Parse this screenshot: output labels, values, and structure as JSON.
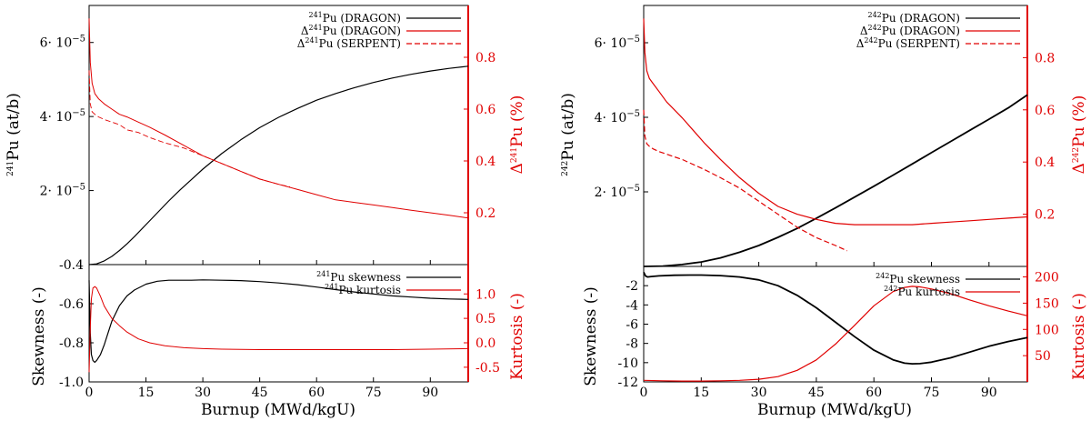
{
  "chart_data": [
    {
      "id": "pu241",
      "type": "line",
      "xlabel": "Burnup (MWd/kgU)",
      "x_ticks": [
        "0",
        "15",
        "30",
        "45",
        "60",
        "75",
        "90"
      ],
      "xlim": [
        0,
        100
      ],
      "top": {
        "ylabel_main": "Pu (at/b)",
        "ylabel_main_sup": "241",
        "ylabel_right": "Pu (%)",
        "ylabel_right_prefix": "Δ",
        "ylabel_right_sup": "241",
        "ylim_left": [
          0,
          7e-05
        ],
        "ylim_right": [
          0,
          1.0
        ],
        "left_ticks": [
          {
            "v": 2e-05,
            "label": "2· 10"
          },
          {
            "v": 4e-05,
            "label": "4· 10"
          },
          {
            "v": 6e-05,
            "label": "6· 10"
          }
        ],
        "left_tick_exp": "−5",
        "right_ticks": [
          "0.2",
          "0.4",
          "0.6",
          "0.8"
        ],
        "legend": [
          {
            "name": "Pu (DRAGON)",
            "sup": "241",
            "prefix": "",
            "color": "#000000",
            "dash": "solid"
          },
          {
            "name": "Pu (DRAGON)",
            "sup": "241",
            "prefix": "Δ",
            "color": "#e00000",
            "dash": "solid"
          },
          {
            "name": "Pu (SERPENT)",
            "sup": "241",
            "prefix": "Δ",
            "color": "#e00000",
            "dash": "dashed"
          }
        ],
        "series": [
          {
            "axis": "left",
            "color": "#000000",
            "dash": "solid",
            "width": 1.2,
            "x": [
              0,
              2,
              4,
              6,
              8,
              10,
              12,
              15,
              18,
              21,
              24,
              27,
              30,
              35,
              40,
              45,
              50,
              55,
              60,
              65,
              70,
              75,
              80,
              85,
              90,
              95,
              100
            ],
            "y": [
              0,
              2e-07,
              1e-06,
              2.2e-06,
              3.8e-06,
              5.6e-06,
              7.6e-06,
              1.08e-05,
              1.4e-05,
              1.72e-05,
              2.02e-05,
              2.3e-05,
              2.58e-05,
              3e-05,
              3.37e-05,
              3.7e-05,
              3.98e-05,
              4.22e-05,
              4.44e-05,
              4.62e-05,
              4.78e-05,
              4.92e-05,
              5.04e-05,
              5.14e-05,
              5.23e-05,
              5.3e-05,
              5.36e-05
            ]
          },
          {
            "axis": "right",
            "color": "#e00000",
            "dash": "solid",
            "width": 1.0,
            "x": [
              0,
              0.3,
              0.8,
              1.5,
              2.5,
              4,
              6,
              8,
              10,
              13,
              16,
              20,
              25,
              30,
              35,
              40,
              45,
              50,
              55,
              60,
              65,
              70,
              75,
              80,
              85,
              90,
              95,
              100
            ],
            "y": [
              0.95,
              0.78,
              0.7,
              0.66,
              0.64,
              0.62,
              0.6,
              0.58,
              0.57,
              0.55,
              0.53,
              0.5,
              0.46,
              0.42,
              0.39,
              0.36,
              0.33,
              0.31,
              0.29,
              0.27,
              0.25,
              0.24,
              0.23,
              0.22,
              0.21,
              0.2,
              0.19,
              0.18
            ]
          },
          {
            "axis": "right",
            "color": "#e00000",
            "dash": "dashed",
            "width": 0.9,
            "x": [
              0,
              0.3,
              0.8,
              1.5,
              2.5,
              4,
              6,
              8,
              10,
              13,
              16,
              20,
              25,
              30,
              35,
              40,
              45,
              50,
              53
            ],
            "y": [
              0.75,
              0.62,
              0.59,
              0.58,
              0.57,
              0.56,
              0.55,
              0.54,
              0.52,
              0.51,
              0.49,
              0.47,
              0.45,
              0.42,
              0.39,
              0.36,
              0.33,
              0.31,
              0.3
            ]
          }
        ]
      },
      "bottom": {
        "ylabel_main": "Skewness (-)",
        "ylabel_right": "Kurtosis (-)",
        "ylim_left": [
          -1.0,
          -0.4
        ],
        "ylim_right": [
          -0.8,
          1.6
        ],
        "left_ticks": [
          "-1.0",
          "-0.8",
          "-0.6",
          "-0.4"
        ],
        "left_tick_values": [
          -1.0,
          -0.8,
          -0.6,
          -0.4
        ],
        "right_ticks": [
          "-0.5",
          "0.0",
          "0.5",
          "1.0"
        ],
        "right_tick_values": [
          -0.5,
          0.0,
          0.5,
          1.0
        ],
        "legend": [
          {
            "name": "Pu skewness",
            "sup": "241",
            "color": "#000000",
            "dash": "solid"
          },
          {
            "name": "Pu kurtosis",
            "sup": "241",
            "color": "#e00000",
            "dash": "solid"
          }
        ],
        "series": [
          {
            "axis": "left",
            "color": "#000000",
            "dash": "solid",
            "width": 1.2,
            "x": [
              0,
              0.3,
              0.6,
              1,
              1.5,
              2,
              3,
              4,
              5,
              6,
              8,
              10,
              12,
              15,
              18,
              21,
              24,
              27,
              30,
              35,
              40,
              45,
              50,
              55,
              60,
              65,
              70,
              75,
              80,
              85,
              90,
              95,
              100
            ],
            "y": [
              -0.48,
              -0.75,
              -0.86,
              -0.89,
              -0.9,
              -0.89,
              -0.86,
              -0.81,
              -0.75,
              -0.69,
              -0.61,
              -0.56,
              -0.53,
              -0.5,
              -0.485,
              -0.48,
              -0.48,
              -0.48,
              -0.478,
              -0.48,
              -0.482,
              -0.487,
              -0.494,
              -0.503,
              -0.515,
              -0.528,
              -0.54,
              -0.55,
              -0.56,
              -0.566,
              -0.572,
              -0.576,
              -0.578
            ]
          },
          {
            "axis": "right",
            "color": "#e00000",
            "dash": "solid",
            "width": 1.0,
            "x": [
              0,
              0.3,
              0.6,
              1,
              1.5,
              2,
              3,
              4,
              6,
              8,
              10,
              13,
              16,
              20,
              25,
              30,
              35,
              40,
              45,
              50,
              60,
              70,
              80,
              90,
              100
            ],
            "y": [
              -0.6,
              0.3,
              0.9,
              1.12,
              1.15,
              1.12,
              0.95,
              0.75,
              0.5,
              0.35,
              0.22,
              0.08,
              0.0,
              -0.06,
              -0.1,
              -0.12,
              -0.13,
              -0.135,
              -0.14,
              -0.14,
              -0.14,
              -0.14,
              -0.14,
              -0.13,
              -0.12
            ]
          }
        ]
      }
    },
    {
      "id": "pu242",
      "type": "line",
      "xlabel": "Burnup (MWd/kgU)",
      "x_ticks": [
        "0",
        "15",
        "30",
        "45",
        "60",
        "75",
        "90"
      ],
      "xlim": [
        0,
        100
      ],
      "top": {
        "ylabel_main": "Pu (at/b)",
        "ylabel_main_sup": "242",
        "ylabel_right": "Pu (%)",
        "ylabel_right_prefix": "Δ",
        "ylabel_right_sup": "242",
        "ylim_left": [
          0,
          7e-05
        ],
        "ylim_right": [
          0,
          1.0
        ],
        "left_ticks": [
          {
            "v": 2e-05,
            "label": "2· 10"
          },
          {
            "v": 4e-05,
            "label": "4· 10"
          },
          {
            "v": 6e-05,
            "label": "6· 10"
          }
        ],
        "left_tick_exp": "−5",
        "right_ticks": [
          "0.2",
          "0.4",
          "0.6",
          "0.8"
        ],
        "legend": [
          {
            "name": "Pu (DRAGON)",
            "sup": "242",
            "prefix": "",
            "color": "#000000",
            "dash": "solid"
          },
          {
            "name": "Pu (DRAGON)",
            "sup": "242",
            "prefix": "Δ",
            "color": "#e00000",
            "dash": "solid"
          },
          {
            "name": "Pu (SERPENT)",
            "sup": "242",
            "prefix": "Δ",
            "color": "#e00000",
            "dash": "dashed"
          }
        ],
        "series": [
          {
            "axis": "left",
            "color": "#000000",
            "dash": "solid",
            "width": 1.8,
            "x": [
              0,
              5,
              10,
              15,
              20,
              25,
              30,
              35,
              40,
              45,
              50,
              55,
              60,
              65,
              70,
              75,
              80,
              85,
              90,
              95,
              100
            ],
            "y": [
              0,
              1e-07,
              5e-07,
              1.2e-06,
              2.3e-06,
              3.8e-06,
              5.6e-06,
              7.8e-06,
              1.02e-05,
              1.29e-05,
              1.57e-05,
              1.86e-05,
              2.15e-05,
              2.45e-05,
              2.75e-05,
              3.05e-05,
              3.35e-05,
              3.65e-05,
              3.95e-05,
              4.25e-05,
              4.6e-05
            ]
          },
          {
            "axis": "right",
            "color": "#e00000",
            "dash": "solid",
            "width": 1.2,
            "x": [
              0,
              0.3,
              0.8,
              1.5,
              2.5,
              4,
              6,
              8,
              10,
              13,
              16,
              20,
              25,
              30,
              35,
              40,
              45,
              50,
              55,
              60,
              65,
              70,
              75,
              80,
              85,
              90,
              95,
              100
            ],
            "y": [
              0.95,
              0.82,
              0.75,
              0.72,
              0.7,
              0.67,
              0.63,
              0.6,
              0.57,
              0.52,
              0.47,
              0.41,
              0.34,
              0.28,
              0.23,
              0.2,
              0.18,
              0.165,
              0.16,
              0.16,
              0.16,
              0.16,
              0.165,
              0.17,
              0.175,
              0.18,
              0.185,
              0.19
            ]
          },
          {
            "axis": "right",
            "color": "#e00000",
            "dash": "dashed",
            "width": 1.2,
            "x": [
              0,
              0.3,
              0.8,
              1.5,
              2.5,
              4,
              6,
              8,
              10,
              13,
              16,
              20,
              25,
              30,
              35,
              40,
              45,
              50,
              53
            ],
            "y": [
              0.6,
              0.5,
              0.47,
              0.46,
              0.45,
              0.44,
              0.43,
              0.42,
              0.41,
              0.39,
              0.37,
              0.34,
              0.3,
              0.25,
              0.2,
              0.15,
              0.11,
              0.08,
              0.06
            ]
          }
        ]
      },
      "bottom": {
        "ylabel_main": "Skewness (-)",
        "ylabel_right": "Kurtosis (-)",
        "ylim_left": [
          -12,
          0
        ],
        "ylim_right": [
          0,
          220
        ],
        "left_ticks": [
          "-12",
          "-10",
          "-8",
          "-6",
          "-4",
          "-2"
        ],
        "left_tick_values": [
          -12,
          -10,
          -8,
          -6,
          -4,
          -2
        ],
        "right_ticks": [
          "50",
          "100",
          "150",
          "200"
        ],
        "right_tick_values": [
          50,
          100,
          150,
          200
        ],
        "legend": [
          {
            "name": "Pu skewness",
            "sup": "242",
            "color": "#000000",
            "dash": "solid"
          },
          {
            "name": "Pu kurtosis",
            "sup": "242",
            "color": "#e00000",
            "dash": "solid"
          }
        ],
        "series": [
          {
            "axis": "left",
            "color": "#000000",
            "dash": "solid",
            "width": 1.8,
            "x": [
              0,
              0.5,
              1,
              2,
              4,
              8,
              12,
              15,
              20,
              25,
              30,
              35,
              40,
              45,
              50,
              55,
              60,
              65,
              68,
              70,
              72,
              75,
              80,
              85,
              90,
              95,
              100
            ],
            "y": [
              -0.6,
              -1.0,
              -1.1,
              -1.05,
              -0.98,
              -0.92,
              -0.9,
              -0.9,
              -0.95,
              -1.1,
              -1.4,
              -2.0,
              -3.0,
              -4.3,
              -5.8,
              -7.3,
              -8.7,
              -9.7,
              -10.05,
              -10.12,
              -10.1,
              -9.95,
              -9.5,
              -8.9,
              -8.3,
              -7.8,
              -7.4
            ]
          },
          {
            "axis": "right",
            "color": "#e00000",
            "dash": "solid",
            "width": 1.2,
            "x": [
              0,
              5,
              10,
              15,
              20,
              25,
              30,
              35,
              40,
              45,
              50,
              55,
              60,
              65,
              68,
              70,
              72,
              75,
              80,
              85,
              90,
              95,
              100
            ],
            "y": [
              3,
              2,
              1.5,
              1.5,
              2,
              3,
              5,
              10,
              22,
              42,
              72,
              108,
              145,
              172,
              180,
              182,
              181,
              177,
              168,
              156,
              145,
              135,
              126
            ]
          }
        ]
      }
    }
  ]
}
